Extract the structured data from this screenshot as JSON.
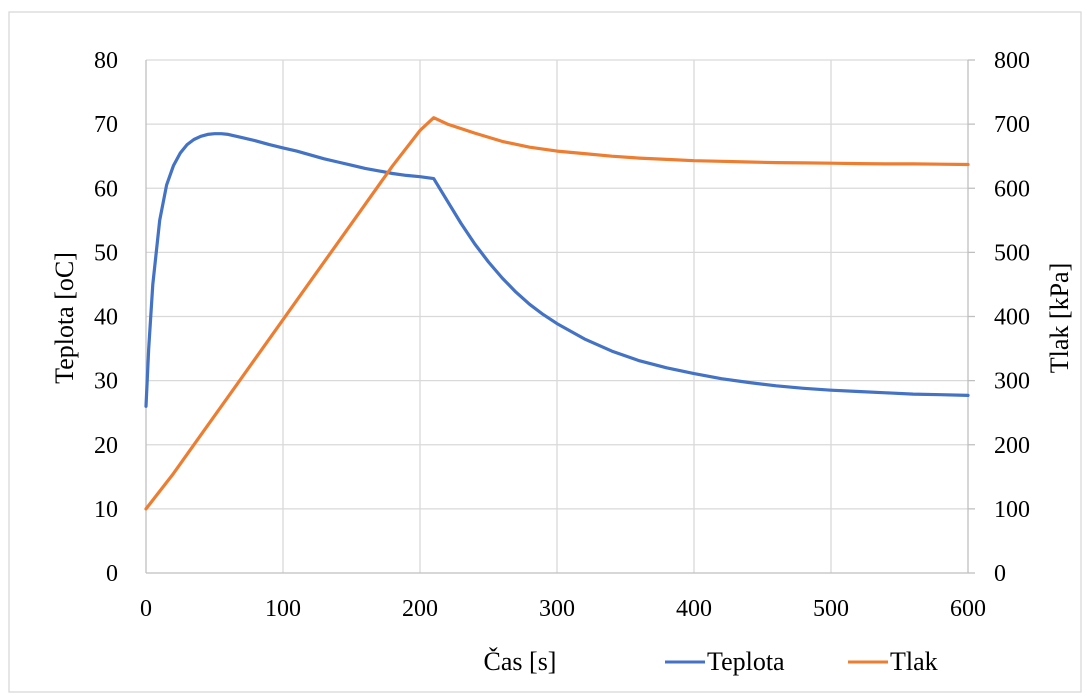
{
  "chart_data": {
    "type": "line",
    "xlabel": "Čas [s]",
    "ylabel": "Teplota [oC]",
    "y2label": "Tlak [kPa]",
    "xlim": [
      0,
      600
    ],
    "ylim": [
      0,
      80
    ],
    "y2lim": [
      0,
      800
    ],
    "x_ticks": [
      0,
      100,
      200,
      300,
      400,
      500,
      600
    ],
    "y_ticks": [
      0,
      10,
      20,
      30,
      40,
      50,
      60,
      70,
      80
    ],
    "y2_ticks": [
      0,
      100,
      200,
      300,
      400,
      500,
      600,
      700,
      800
    ],
    "grid": true,
    "legend": "bottom-right",
    "series": [
      {
        "name": "Teplota",
        "axis": "left",
        "color": "#4472c4",
        "x": [
          0,
          2,
          5,
          10,
          15,
          20,
          25,
          30,
          35,
          40,
          45,
          50,
          55,
          60,
          70,
          80,
          90,
          100,
          110,
          120,
          130,
          140,
          150,
          160,
          170,
          180,
          190,
          200,
          210,
          220,
          230,
          240,
          250,
          260,
          270,
          280,
          290,
          300,
          320,
          340,
          360,
          380,
          400,
          420,
          440,
          460,
          480,
          500,
          520,
          540,
          560,
          580,
          600
        ],
        "y": [
          26,
          35,
          45,
          55,
          60.5,
          63.5,
          65.5,
          66.8,
          67.6,
          68.1,
          68.4,
          68.5,
          68.5,
          68.4,
          67.9,
          67.4,
          66.8,
          66.3,
          65.8,
          65.2,
          64.6,
          64.1,
          63.6,
          63.1,
          62.7,
          62.3,
          62.0,
          61.8,
          61.5,
          58.0,
          54.5,
          51.3,
          48.5,
          46.0,
          43.8,
          41.9,
          40.3,
          38.9,
          36.5,
          34.6,
          33.1,
          32.0,
          31.1,
          30.3,
          29.7,
          29.2,
          28.8,
          28.5,
          28.3,
          28.1,
          27.9,
          27.8,
          27.7
        ]
      },
      {
        "name": "Tlak",
        "axis": "right",
        "color": "#ed7d31",
        "x": [
          0,
          20,
          40,
          60,
          80,
          100,
          120,
          140,
          160,
          180,
          200,
          210,
          220,
          240,
          260,
          280,
          300,
          320,
          340,
          360,
          380,
          400,
          420,
          440,
          460,
          480,
          500,
          520,
          540,
          560,
          580,
          600
        ],
        "y": [
          100,
          155,
          215,
          275,
          335,
          395,
          455,
          515,
          575,
          635,
          690,
          710,
          700,
          686,
          673,
          664,
          658,
          654,
          650,
          647,
          645,
          643,
          642,
          641,
          640,
          639.5,
          639,
          638.5,
          638,
          638,
          637.5,
          637
        ]
      }
    ]
  }
}
